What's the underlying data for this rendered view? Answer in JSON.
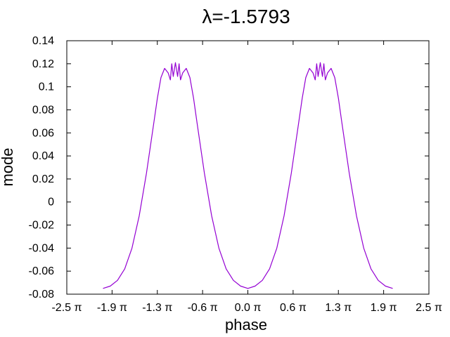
{
  "chart_data": {
    "type": "line",
    "title": "λ=-1.5793",
    "xlabel": "phase",
    "ylabel": "mode",
    "xlim": [
      -2.5,
      2.5
    ],
    "ylim": [
      -0.08,
      0.14
    ],
    "x_unit": "π",
    "x_ticks": [
      -2.5,
      -1.875,
      -1.25,
      -0.625,
      0.0,
      0.625,
      1.25,
      1.875,
      2.5
    ],
    "x_tick_labels": [
      "-2.5 π",
      "-1.9 π",
      "-1.3 π",
      "-0.6 π",
      "0.0 π",
      "0.6 π",
      "1.3 π",
      "1.9 π",
      "2.5 π"
    ],
    "y_ticks": [
      -0.08,
      -0.06,
      -0.04,
      -0.02,
      0,
      0.02,
      0.04,
      0.06,
      0.08,
      0.1,
      0.12,
      0.14
    ],
    "y_tick_labels": [
      "-0.08",
      "-0.06",
      "-0.04",
      "-0.02",
      "0",
      "0.02",
      "0.04",
      "0.06",
      "0.08",
      "0.1",
      "0.12",
      "0.14"
    ],
    "grid": false,
    "series": [
      {
        "color": "#9400d3",
        "x": [
          -2.0,
          -1.9,
          -1.8,
          -1.7,
          -1.6,
          -1.5,
          -1.4,
          -1.3,
          -1.25,
          -1.2,
          -1.15,
          -1.1,
          -1.07,
          -1.05,
          -1.03,
          -1.0,
          -0.97,
          -0.95,
          -0.93,
          -0.9,
          -0.85,
          -0.8,
          -0.75,
          -0.7,
          -0.6,
          -0.5,
          -0.4,
          -0.3,
          -0.2,
          -0.1,
          0.0,
          0.1,
          0.2,
          0.3,
          0.4,
          0.5,
          0.6,
          0.7,
          0.75,
          0.8,
          0.85,
          0.9,
          0.93,
          0.95,
          0.97,
          1.0,
          1.03,
          1.05,
          1.07,
          1.1,
          1.15,
          1.2,
          1.25,
          1.3,
          1.4,
          1.5,
          1.6,
          1.7,
          1.8,
          1.9,
          2.0
        ],
        "y": [
          -0.075,
          -0.073,
          -0.068,
          -0.058,
          -0.04,
          -0.012,
          0.025,
          0.068,
          0.09,
          0.108,
          0.116,
          0.112,
          0.106,
          0.12,
          0.109,
          0.121,
          0.109,
          0.12,
          0.106,
          0.112,
          0.116,
          0.108,
          0.09,
          0.068,
          0.025,
          -0.012,
          -0.04,
          -0.058,
          -0.068,
          -0.073,
          -0.075,
          -0.073,
          -0.068,
          -0.058,
          -0.04,
          -0.012,
          0.025,
          0.068,
          0.09,
          0.108,
          0.116,
          0.112,
          0.106,
          0.12,
          0.109,
          0.121,
          0.109,
          0.12,
          0.106,
          0.112,
          0.116,
          0.108,
          0.09,
          0.068,
          0.025,
          -0.012,
          -0.04,
          -0.058,
          -0.068,
          -0.073,
          -0.075
        ]
      }
    ]
  }
}
